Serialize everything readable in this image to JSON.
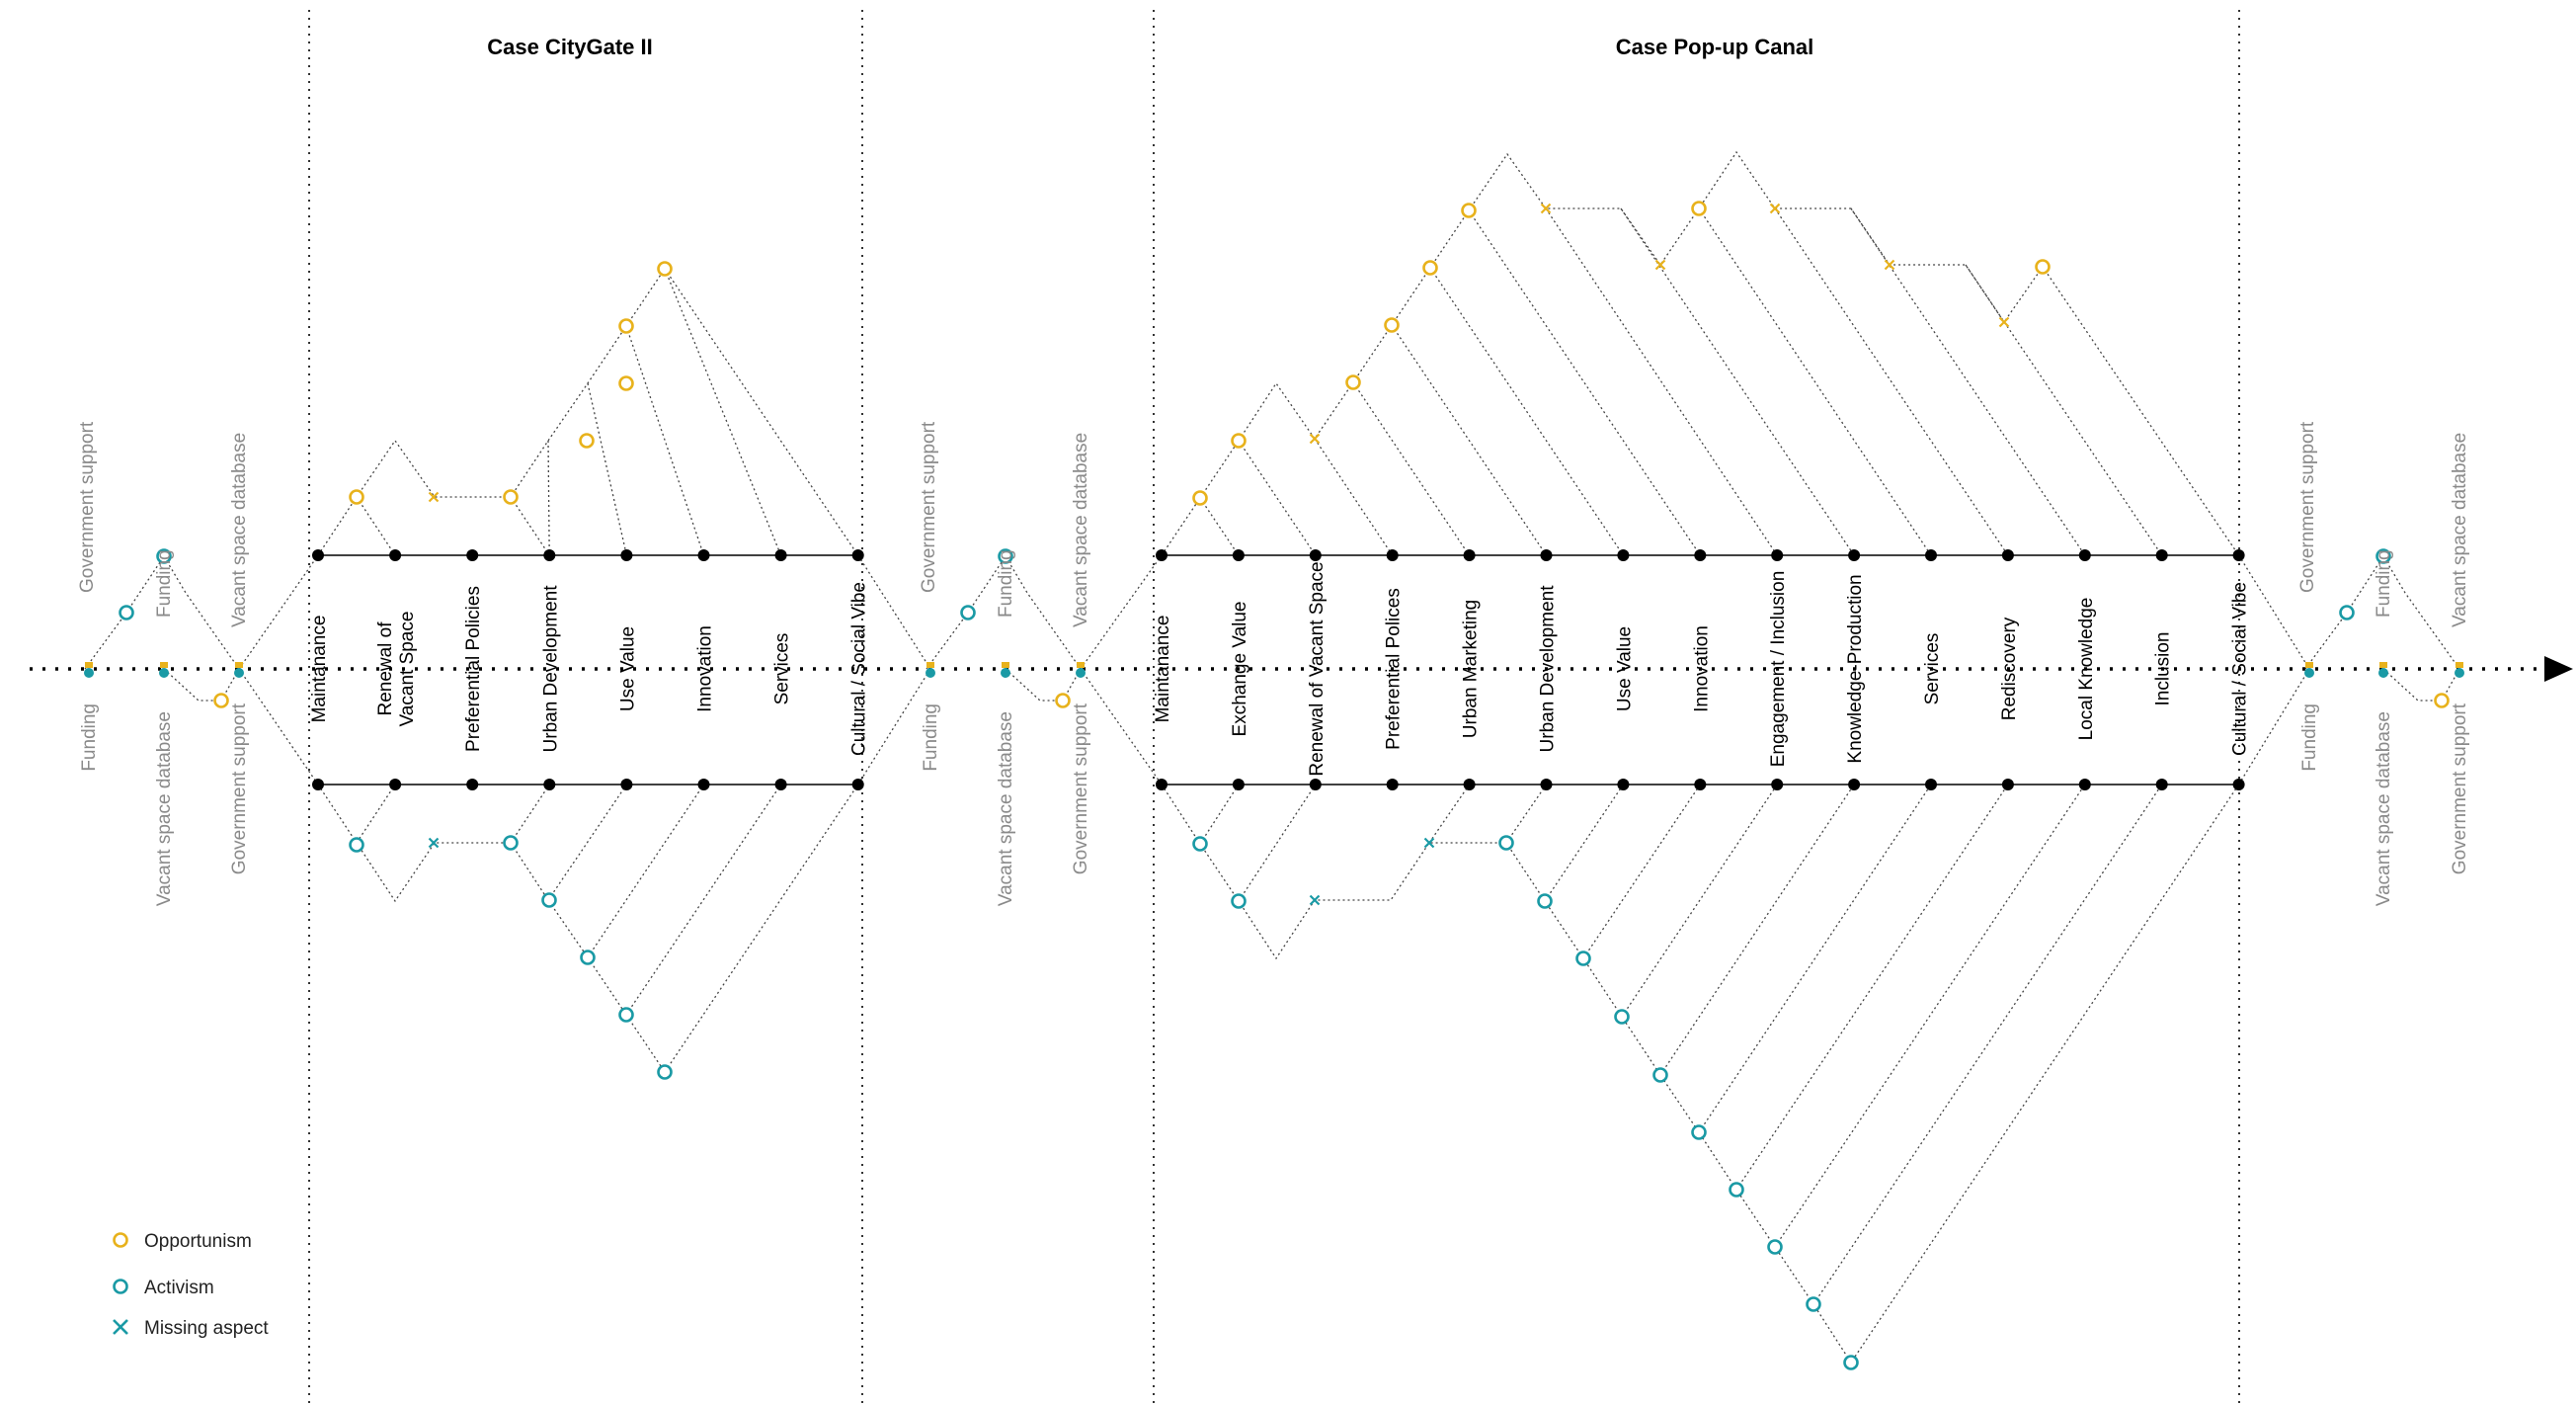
{
  "colors": {
    "opportunism": "#e8b21c",
    "activism": "#1a9aa5",
    "node": "#000000"
  },
  "cases": [
    {
      "title": "Case CityGate II",
      "aspects": [
        "Maintanance",
        "Renewal of\nVacant Space",
        "Preferential Policies",
        "Urban Development",
        "Use Value",
        "Innovation",
        "Services",
        "Cultural / Social Vibe"
      ]
    },
    {
      "title": "Case Pop-up Canal",
      "aspects": [
        "Maintanance",
        "Exchange Value",
        "Renewal of Vacant Space",
        "Preferential Polices",
        "Urban Marketing",
        "Urban Development",
        "Use Value",
        "Innovation",
        "Engagement / Inclusion",
        "Knowledge-Production",
        "Services",
        "Rediscovery",
        "Local Knowledge",
        "Inclusion",
        "Cultural / Social Vibe"
      ]
    }
  ],
  "side_groups": [
    {
      "above": [
        "Government support",
        "Funding",
        "Vacant space database"
      ],
      "below": [
        "Funding",
        "Vacant space database",
        "Government support"
      ]
    },
    {
      "above": [
        "Government support",
        "Funding",
        "Vacant space database"
      ],
      "below": [
        "Funding",
        "Vacant space database",
        "Government support"
      ]
    },
    {
      "above": [
        "Government support",
        "Funding",
        "Vacant space database"
      ],
      "below": [
        "Funding",
        "Vacant space database",
        "Government support"
      ]
    }
  ],
  "legend": [
    {
      "label": "Opportunism",
      "icon": "circle-opportunism-icon"
    },
    {
      "label": "Activism",
      "icon": "circle-activism-icon"
    },
    {
      "label": "Missing aspect",
      "icon": "cross-icon"
    }
  ]
}
